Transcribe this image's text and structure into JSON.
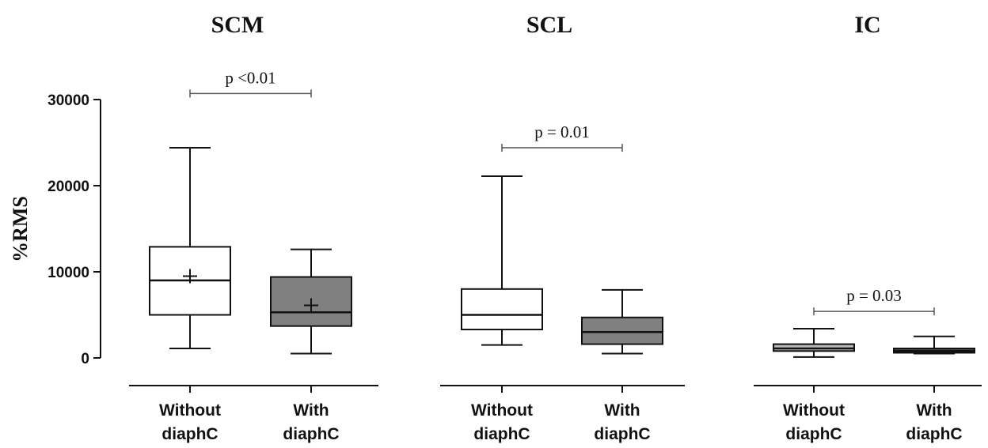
{
  "chart_data": {
    "type": "box",
    "ylabel": "%RMS",
    "ylim": [
      0,
      30000
    ],
    "yticks": [
      0,
      10000,
      20000,
      30000
    ],
    "ytick_labels": [
      "0",
      "10000",
      "20000",
      "30000"
    ],
    "legend": "none",
    "grid": false,
    "panels": [
      {
        "title": "SCM",
        "categories": [
          "Without\ndiaphC",
          "With\ndiaphC"
        ],
        "boxes": [
          {
            "category": "Without diaphC",
            "fill": "#ffffff",
            "min": 1100,
            "q1": 5000,
            "median": 9000,
            "q3": 12900,
            "max": 24400,
            "mean": 9500
          },
          {
            "category": "With diaphC",
            "fill": "#808080",
            "min": 500,
            "q1": 3700,
            "median": 5300,
            "q3": 9400,
            "max": 12600,
            "mean": 6100
          }
        ],
        "comparison": {
          "text": "p <0.01",
          "y": 30700
        }
      },
      {
        "title": "SCL",
        "categories": [
          "Without\ndiaphC",
          "With\ndiaphC"
        ],
        "boxes": [
          {
            "category": "Without diaphC",
            "fill": "#ffffff",
            "min": 1500,
            "q1": 3300,
            "median": 5000,
            "q3": 8000,
            "max": 21100
          },
          {
            "category": "With diaphC",
            "fill": "#808080",
            "min": 500,
            "q1": 1600,
            "median": 3000,
            "q3": 4700,
            "max": 7900
          }
        ],
        "comparison": {
          "text": "p = 0.01",
          "y": 24400
        }
      },
      {
        "title": "IC",
        "categories": [
          "Without\ndiaphC",
          "With\ndiaphC"
        ],
        "boxes": [
          {
            "category": "Without diaphC",
            "fill": "#b8b8b8",
            "min": 100,
            "q1": 800,
            "median": 1100,
            "q3": 1600,
            "max": 3400
          },
          {
            "category": "With diaphC",
            "fill": "#4a4a4a",
            "min": 500,
            "q1": 600,
            "median": 800,
            "q3": 1100,
            "max": 2500
          }
        ],
        "comparison": {
          "text": "p = 0.03",
          "y": 5400
        }
      }
    ]
  }
}
